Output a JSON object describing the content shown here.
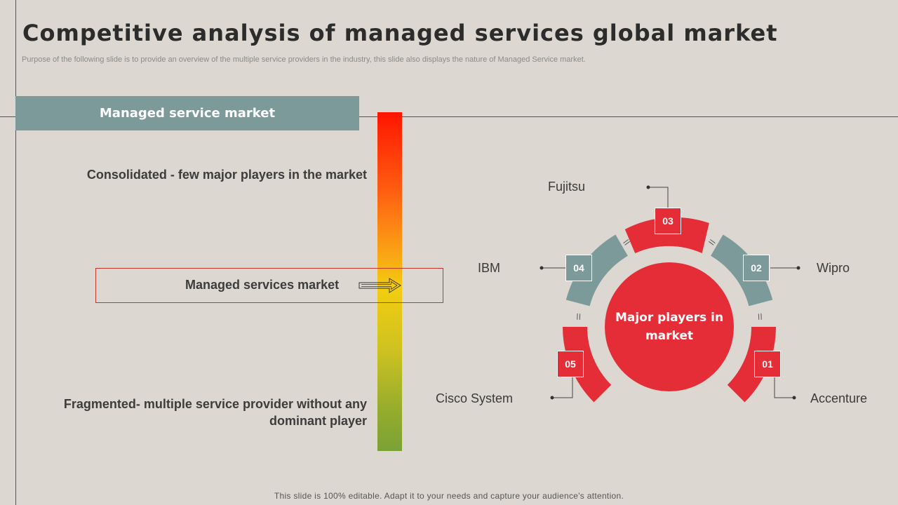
{
  "title": "Competitive analysis of managed services global market",
  "subtitle": "Purpose of the following slide is to provide an overview of the multiple service providers in the industry, this slide also displays the nature of Managed Service market.",
  "left_panel": {
    "header": "Managed service market",
    "top_label": "Consolidated - few major players in the market",
    "middle_label": "Managed services market",
    "bottom_label": "Fragmented- multiple service provider without any dominant player"
  },
  "cycle": {
    "center_label": "Major players in market",
    "players": [
      {
        "number": "01",
        "name": "Accenture",
        "color": "#e52d38"
      },
      {
        "number": "02",
        "name": "Wipro",
        "color": "#7d9a9b"
      },
      {
        "number": "03",
        "name": "Fujitsu",
        "color": "#e52d38"
      },
      {
        "number": "04",
        "name": "IBM",
        "color": "#7d9a9b"
      },
      {
        "number": "05",
        "name": "Cisco System",
        "color": "#e52d38"
      }
    ]
  },
  "footer": "This slide is 100% editable. Adapt it to your needs and capture your audience's attention.",
  "colors": {
    "accent_red": "#e52d38",
    "accent_teal": "#7d9a9b",
    "background": "#dcd8d1"
  },
  "icons": [
    "double-arrow-right-icon"
  ]
}
